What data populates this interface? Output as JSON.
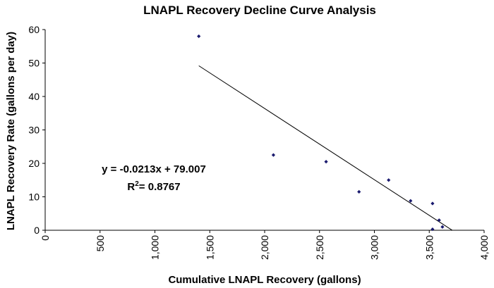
{
  "chart_data": {
    "type": "scatter",
    "title": "LNAPL Recovery Decline Curve Analysis",
    "xlabel": "Cumulative  LNAPL Recovery (gallons)",
    "ylabel": "LNAPL Recovery Rate (gallons per day)",
    "xlim": [
      0,
      4000
    ],
    "ylim": [
      0,
      60
    ],
    "x_ticks": [
      0,
      500,
      1000,
      1500,
      2000,
      2500,
      3000,
      3500,
      4000
    ],
    "x_tick_labels": [
      "0",
      "500",
      "1,000",
      "1,500",
      "2,000",
      "2,500",
      "3,000",
      "3,500",
      "4,000"
    ],
    "y_ticks": [
      0,
      10,
      20,
      30,
      40,
      50,
      60
    ],
    "y_tick_labels": [
      "0",
      "10",
      "20",
      "30",
      "40",
      "50",
      "60"
    ],
    "grid": false,
    "series": [
      {
        "marker_color": "#1a1a6e",
        "points": [
          {
            "x": 1400,
            "y": 58
          },
          {
            "x": 2080,
            "y": 22.5
          },
          {
            "x": 2560,
            "y": 20.5
          },
          {
            "x": 2860,
            "y": 11.5
          },
          {
            "x": 3130,
            "y": 15
          },
          {
            "x": 3330,
            "y": 8.8
          },
          {
            "x": 3530,
            "y": 8
          },
          {
            "x": 3590,
            "y": 3
          },
          {
            "x": 3620,
            "y": 1
          },
          {
            "x": 3530,
            "y": 0.3
          }
        ]
      }
    ],
    "trendline": {
      "slope": -0.0213,
      "intercept": 79.007,
      "x_range": [
        1400,
        3709
      ],
      "equation_text": "y = -0.0213x + 79.007",
      "r2_base": "R",
      "r2_sup": "2",
      "r2_value": "= 0.8767"
    }
  }
}
